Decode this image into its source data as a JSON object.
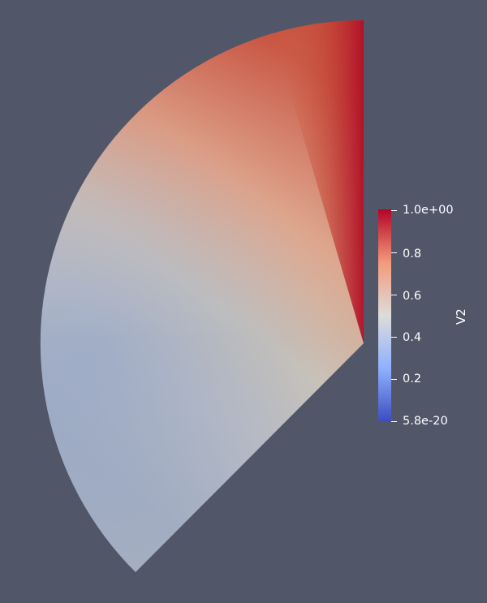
{
  "scene": {
    "background_color": "#515669",
    "field_name": "V2"
  },
  "colormap": {
    "name": "Cool to Warm",
    "low_color": "#3b4cc0",
    "mid_color": "#dddcdc",
    "high_color": "#b40426"
  },
  "scalar_bar": {
    "title": "V2",
    "tick_labels": [
      "1.0e+00",
      "0.8",
      "0.6",
      "0.4",
      "0.2",
      "5.8e-20"
    ],
    "tick_values": [
      1.0,
      0.8,
      0.6,
      0.4,
      0.2,
      0.0
    ]
  }
}
